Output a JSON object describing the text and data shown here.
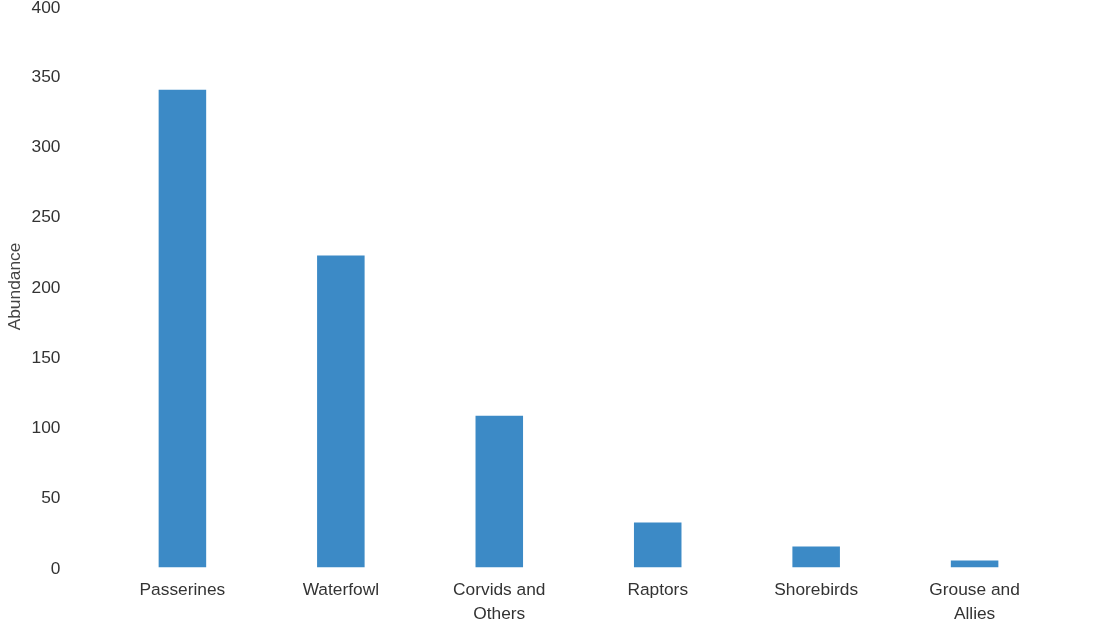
{
  "chart_data": {
    "type": "bar",
    "ylabel": "Abundance",
    "categories": [
      "Passerines",
      "Waterfowl",
      "Corvids and Others",
      "Raptors",
      "Shorebirds",
      "Grouse and Allies"
    ],
    "values": [
      340,
      222,
      108,
      32,
      15,
      5
    ],
    "color": "#3c8ac6",
    "ylim": [
      0,
      400
    ],
    "yticks": [
      0,
      50,
      100,
      150,
      200,
      250,
      300,
      350,
      400
    ],
    "grid": false
  }
}
